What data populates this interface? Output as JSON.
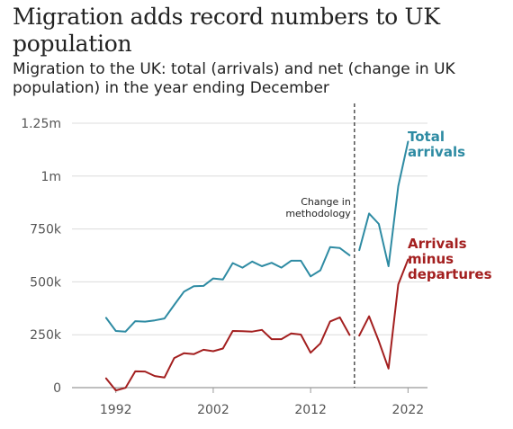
{
  "chart_data": {
    "type": "line",
    "title": "Migration adds record numbers to UK population",
    "subtitle": "Migration to the UK: total (arrivals) and net (change in UK population) in the year ending December",
    "xlabel": "",
    "ylabel": "",
    "xlim": [
      1987.5,
      2024
    ],
    "ylim": [
      0,
      1250000
    ],
    "y_ticks": [
      {
        "value": 0,
        "label": "0"
      },
      {
        "value": 250000,
        "label": "250k"
      },
      {
        "value": 500000,
        "label": "500k"
      },
      {
        "value": 750000,
        "label": "750k"
      },
      {
        "value": 1000000,
        "label": "1m"
      },
      {
        "value": 1250000,
        "label": "1.25m"
      }
    ],
    "x_ticks": [
      {
        "value": 1992,
        "label": "1992"
      },
      {
        "value": 2002,
        "label": "2002"
      },
      {
        "value": 2012,
        "label": "2012"
      },
      {
        "value": 2022,
        "label": "2022"
      }
    ],
    "grid": true,
    "legend": "direct labels at right",
    "annotation": {
      "x": 2016.5,
      "lines": [
        "Change in",
        "methodology"
      ]
    },
    "series": [
      {
        "name": "Total arrivals",
        "label_lines": [
          "Total",
          "arrivals"
        ],
        "color": "#2e8ba3",
        "segments": [
          {
            "x": [
              1991,
              1992,
              1993,
              1994,
              1995,
              1996,
              1997,
              1998,
              1999,
              2000,
              2001,
              2002,
              2003,
              2004,
              2005,
              2006,
              2007,
              2008,
              2009,
              2010,
              2011,
              2012,
              2013,
              2014,
              2015,
              2016
            ],
            "y": [
              330000,
              268000,
              265000,
              314000,
              312000,
              318000,
              327000,
              391000,
              454000,
              479000,
              481000,
              516000,
              511000,
              589000,
              567000,
              596000,
              574000,
              590000,
              567000,
              600000,
              600000,
              526000,
              555000,
              664000,
              660000,
              626000
            ]
          },
          {
            "x": [
              2017,
              2018,
              2019,
              2020,
              2021,
              2022
            ],
            "y": [
              650000,
              823000,
              774000,
              574000,
              952000,
              1163000
            ]
          }
        ]
      },
      {
        "name": "Arrivals minus departures",
        "label_lines": [
          "Arrivals",
          "minus",
          "departures"
        ],
        "color": "#a31f1f",
        "segments": [
          {
            "x": [
              1991,
              1992,
              1993,
              1994,
              1995,
              1996,
              1997,
              1998,
              1999,
              2000,
              2001,
              2002,
              2003,
              2004,
              2005,
              2006,
              2007,
              2008,
              2009,
              2010,
              2011,
              2012,
              2013,
              2014,
              2015,
              2016
            ],
            "y": [
              44000,
              -13000,
              -1000,
              77000,
              76000,
              55000,
              48000,
              140000,
              163000,
              158000,
              179000,
              172000,
              185000,
              268000,
              267000,
              265000,
              273000,
              229000,
              229000,
              256000,
              251000,
              165000,
              209000,
              313000,
              332000,
              249000
            ]
          },
          {
            "x": [
              2017,
              2018,
              2019,
              2020,
              2021,
              2022
            ],
            "y": [
              246000,
              337000,
              220000,
              90000,
              488000,
              606000
            ]
          }
        ]
      }
    ]
  }
}
